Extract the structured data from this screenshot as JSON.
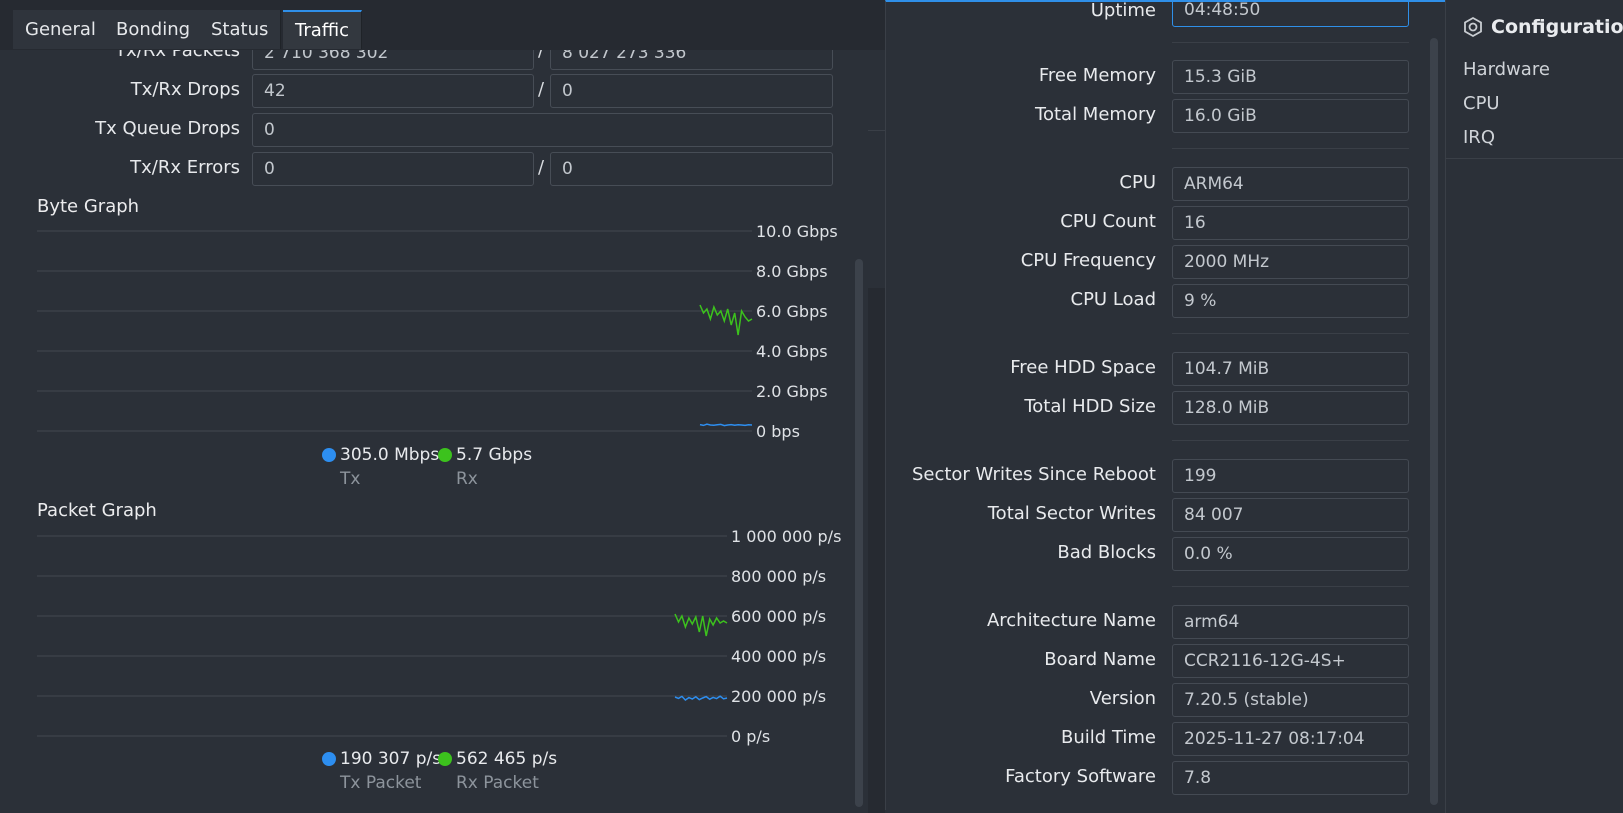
{
  "tabs": [
    {
      "label": "General"
    },
    {
      "label": "Bonding"
    },
    {
      "label": "Status"
    },
    {
      "label": "Traffic"
    }
  ],
  "stats": {
    "packets": {
      "label": "Tx/Rx Packets",
      "tx": "2 710 368 302",
      "rx": "8 027 273 336"
    },
    "drops": {
      "label": "Tx/Rx Drops",
      "tx": "42",
      "rx": "0"
    },
    "queue_drops": {
      "label": "Tx Queue Drops",
      "value": "0"
    },
    "errors": {
      "label": "Tx/Rx Errors",
      "tx": "0",
      "rx": "0"
    },
    "slash": "/"
  },
  "byte_graph": {
    "title": "Byte Graph",
    "tx_value": "305.0 Mbps",
    "rx_value": "5.7 Gbps",
    "tx_label": "Tx",
    "rx_label": "Rx"
  },
  "packet_graph": {
    "title": "Packet Graph",
    "tx_value": "190 307 p/s",
    "rx_value": "562 465 p/s",
    "tx_label": "Tx Packet",
    "rx_label": "Rx Packet"
  },
  "chart_data": [
    {
      "type": "line",
      "title": "Byte Graph",
      "tick_labels": [
        "10.0 Gbps",
        "8.0 Gbps",
        "6.0 Gbps",
        "4.0 Gbps",
        "2.0 Gbps",
        "0 bps"
      ],
      "ylim": [
        0,
        10
      ],
      "y_unit": "Gbps",
      "grid": true,
      "series": [
        {
          "name": "Tx",
          "color": "#2d8ef0",
          "values": [
            0.32,
            0.28,
            0.34,
            0.3,
            0.29,
            0.31,
            0.33,
            0.27,
            0.3,
            0.32,
            0.29,
            0.31,
            0.3,
            0.28,
            0.31,
            0.3
          ]
        },
        {
          "name": "Rx",
          "color": "#3cc21d",
          "values": [
            6.3,
            5.9,
            6.1,
            5.6,
            6.2,
            5.8,
            6.0,
            5.5,
            6.1,
            5.3,
            5.9,
            4.8,
            6.0,
            5.7,
            5.5,
            5.6
          ]
        }
      ]
    },
    {
      "type": "line",
      "title": "Packet Graph",
      "tick_labels": [
        "1 000 000 p/s",
        "800 000 p/s",
        "600 000 p/s",
        "400 000 p/s",
        "200 000 p/s",
        "0 p/s"
      ],
      "ylim": [
        0,
        1000000
      ],
      "y_unit": "p/s",
      "grid": true,
      "series": [
        {
          "name": "Tx Packet",
          "color": "#2d8ef0",
          "values": [
            195000,
            188000,
            198000,
            180000,
            192000,
            185000,
            196000,
            182000,
            190000,
            197000,
            184000,
            193000,
            187000,
            199000,
            186000,
            190000
          ]
        },
        {
          "name": "Rx Packet",
          "color": "#3cc21d",
          "values": [
            610000,
            570000,
            600000,
            545000,
            590000,
            560000,
            595000,
            520000,
            600000,
            500000,
            585000,
            555000,
            590000,
            565000,
            575000,
            565000
          ]
        }
      ]
    }
  ],
  "resources": {
    "uptime": {
      "label": "Uptime",
      "value": "04:48:50"
    },
    "free_memory": {
      "label": "Free Memory",
      "value": "15.3 GiB"
    },
    "total_memory": {
      "label": "Total Memory",
      "value": "16.0 GiB"
    },
    "cpu": {
      "label": "CPU",
      "value": "ARM64"
    },
    "cpu_count": {
      "label": "CPU Count",
      "value": "16"
    },
    "cpu_frequency": {
      "label": "CPU Frequency",
      "value": "2000 MHz"
    },
    "cpu_load": {
      "label": "CPU Load",
      "value": "9 %"
    },
    "free_hdd": {
      "label": "Free HDD Space",
      "value": "104.7 MiB"
    },
    "total_hdd": {
      "label": "Total HDD Size",
      "value": "128.0 MiB"
    },
    "sector_writes_reboot": {
      "label": "Sector Writes Since Reboot",
      "value": "199"
    },
    "total_sector_writes": {
      "label": "Total Sector Writes",
      "value": "84 007"
    },
    "bad_blocks": {
      "label": "Bad Blocks",
      "value": "0.0 %"
    },
    "arch_name": {
      "label": "Architecture Name",
      "value": "arm64"
    },
    "board_name": {
      "label": "Board Name",
      "value": "CCR2116-12G-4S+"
    },
    "version": {
      "label": "Version",
      "value": "7.20.5 (stable)"
    },
    "build_time": {
      "label": "Build Time",
      "value": "2025-11-27 08:17:04"
    },
    "factory_software": {
      "label": "Factory Software",
      "value": "7.8"
    }
  },
  "config": {
    "title": "Configuration",
    "icon": "hexagon-gear-icon",
    "items": [
      {
        "label": "Hardware"
      },
      {
        "label": "CPU"
      },
      {
        "label": "IRQ"
      }
    ]
  }
}
